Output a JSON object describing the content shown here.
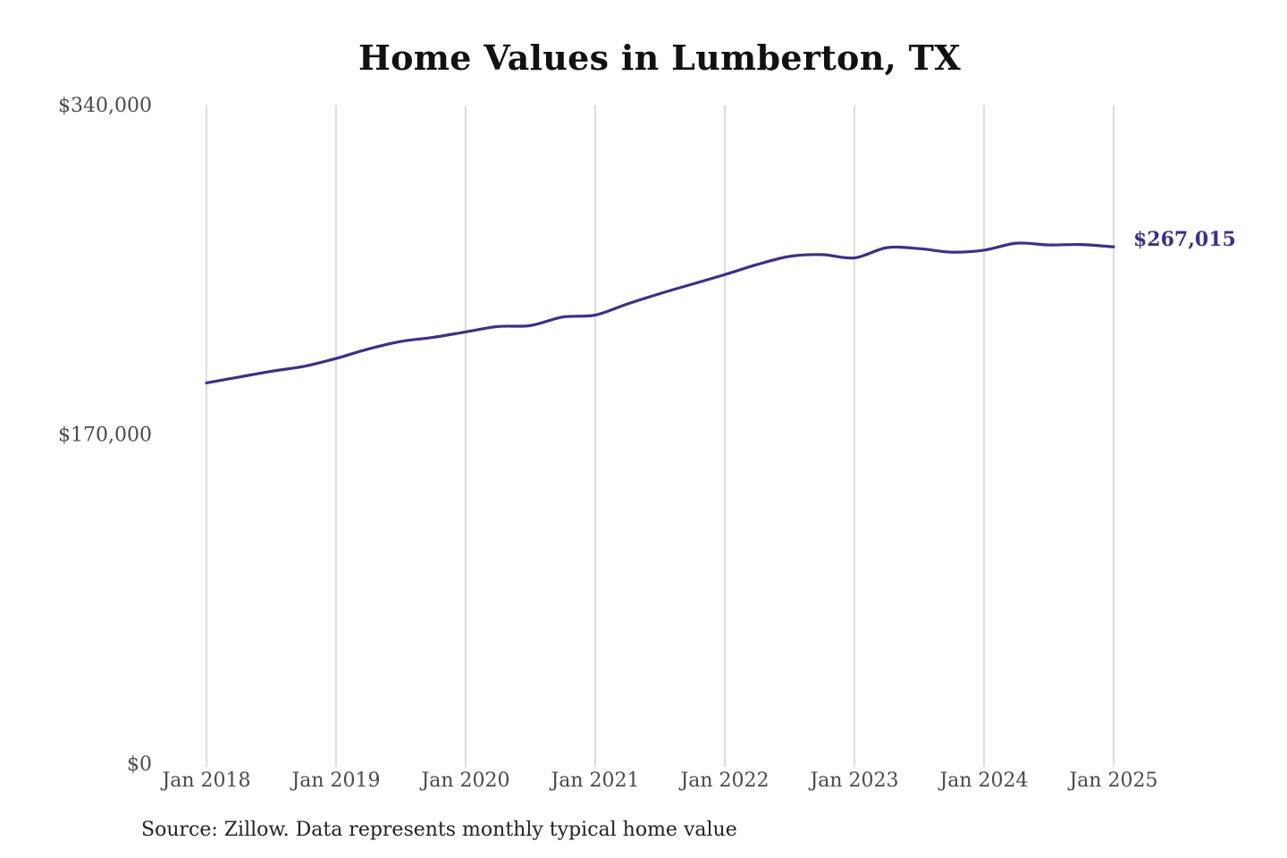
{
  "colors": {
    "series": "#3a3186",
    "grid": "#c4c4c4"
  },
  "chart_data": {
    "type": "line",
    "title": "Home Values in Lumberton, TX",
    "xlabel": "",
    "ylabel": "",
    "ylim": [
      0,
      340000
    ],
    "yticks": [
      {
        "value": 0,
        "label": "$0"
      },
      {
        "value": 170000,
        "label": "$170,000"
      },
      {
        "value": 340000,
        "label": "$340,000"
      }
    ],
    "xticks": [
      {
        "value": "2018-01",
        "label": "Jan 2018"
      },
      {
        "value": "2019-01",
        "label": "Jan 2019"
      },
      {
        "value": "2020-01",
        "label": "Jan 2020"
      },
      {
        "value": "2021-01",
        "label": "Jan 2021"
      },
      {
        "value": "2022-01",
        "label": "Jan 2022"
      },
      {
        "value": "2023-01",
        "label": "Jan 2023"
      },
      {
        "value": "2024-01",
        "label": "Jan 2024"
      },
      {
        "value": "2025-01",
        "label": "Jan 2025"
      }
    ],
    "grid": "vertical",
    "series": [
      {
        "points": [
          [
            "2018-01",
            196800
          ],
          [
            "2018-04",
            199800
          ],
          [
            "2018-07",
            202800
          ],
          [
            "2018-10",
            205300
          ],
          [
            "2019-01",
            209400
          ],
          [
            "2019-04",
            214300
          ],
          [
            "2019-07",
            218200
          ],
          [
            "2019-10",
            220300
          ],
          [
            "2020-01",
            223100
          ],
          [
            "2020-04",
            225900
          ],
          [
            "2020-07",
            226400
          ],
          [
            "2020-10",
            230800
          ],
          [
            "2021-01",
            231800
          ],
          [
            "2021-04",
            237600
          ],
          [
            "2021-07",
            242900
          ],
          [
            "2021-10",
            247800
          ],
          [
            "2022-01",
            252700
          ],
          [
            "2022-04",
            257900
          ],
          [
            "2022-07",
            262100
          ],
          [
            "2022-10",
            263000
          ],
          [
            "2023-01",
            261300
          ],
          [
            "2023-04",
            266600
          ],
          [
            "2023-07",
            266100
          ],
          [
            "2023-10",
            264300
          ],
          [
            "2024-01",
            265300
          ],
          [
            "2024-04",
            268900
          ],
          [
            "2024-07",
            268000
          ],
          [
            "2024-10",
            268200
          ],
          [
            "2025-01",
            267015
          ]
        ]
      }
    ],
    "end_label": "$267,015"
  },
  "source_note": "Source: Zillow. Data represents monthly typical home value"
}
